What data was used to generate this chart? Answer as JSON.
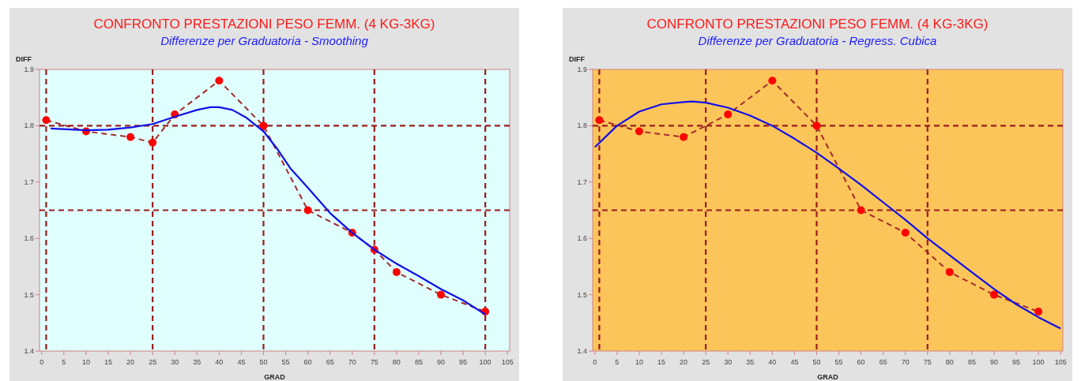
{
  "chart_data": [
    {
      "type": "line",
      "title": "CONFRONTO PRESTAZIONI PESO FEMM. (4 KG-3KG)",
      "subtitle": "Differenze per Graduatoria - Smoothing",
      "xlabel": "GRAD",
      "ylabel": "DIFF",
      "xlim": [
        -0.5,
        105.5
      ],
      "xticks": [
        0,
        5,
        10,
        15,
        20,
        25,
        30,
        35,
        40,
        45,
        50,
        55,
        60,
        65,
        70,
        75,
        80,
        85,
        90,
        95,
        100,
        105
      ],
      "ylim": [
        1.4,
        1.9
      ],
      "yticks": [
        1.4,
        1.5,
        1.6,
        1.7,
        1.8,
        1.9
      ],
      "grid": false,
      "ref_lines": [
        {
          "axis": "x",
          "value": 1,
          "color": "#9b1c1c",
          "line_style": "dashed"
        },
        {
          "axis": "x",
          "value": 25,
          "color": "#9b1c1c",
          "line_style": "dashed"
        },
        {
          "axis": "x",
          "value": 50,
          "color": "#9b1c1c",
          "line_style": "dashed"
        },
        {
          "axis": "x",
          "value": 75,
          "color": "#9b1c1c",
          "line_style": "dashed"
        },
        {
          "axis": "x",
          "value": 100,
          "color": "#9b1c1c",
          "line_style": "dashed"
        },
        {
          "axis": "y",
          "value": 1.8,
          "color": "#9b1c1c",
          "line_style": "dashed"
        },
        {
          "axis": "y",
          "value": 1.65,
          "color": "#9b1c1c",
          "line_style": "dashed"
        }
      ],
      "series": [
        {
          "type": "line",
          "color": "#a52a2a",
          "line_style": "dashed",
          "marker": "none",
          "x": [
            1,
            10,
            20,
            25,
            30,
            40,
            50,
            60,
            70,
            75,
            80,
            90,
            100
          ],
          "values": [
            1.81,
            1.79,
            1.78,
            1.77,
            1.82,
            1.88,
            1.8,
            1.65,
            1.61,
            1.58,
            1.54,
            1.5,
            1.47
          ]
        },
        {
          "type": "scatter",
          "color": "#ff0000",
          "marker": "circle",
          "x": [
            1,
            10,
            20,
            25,
            30,
            40,
            50,
            60,
            70,
            75,
            80,
            90,
            100
          ],
          "values": [
            1.81,
            1.79,
            1.78,
            1.77,
            1.82,
            1.88,
            1.8,
            1.65,
            1.61,
            1.58,
            1.54,
            1.5,
            1.47
          ]
        },
        {
          "type": "line",
          "color": "#1010e8",
          "line_style": "solid",
          "marker": "none",
          "x": [
            2,
            10,
            15,
            20,
            25,
            30,
            35,
            38,
            40,
            43,
            46,
            50,
            53,
            56,
            60,
            65,
            70,
            75,
            80,
            85,
            90,
            95,
            100
          ],
          "values": [
            1.795,
            1.792,
            1.793,
            1.797,
            1.803,
            1.816,
            1.828,
            1.833,
            1.833,
            1.828,
            1.815,
            1.79,
            1.76,
            1.725,
            1.69,
            1.645,
            1.61,
            1.58,
            1.555,
            1.533,
            1.51,
            1.49,
            1.465
          ]
        }
      ]
    },
    {
      "type": "line",
      "title": "CONFRONTO PRESTAZIONI PESO FEMM. (4 KG-3KG)",
      "subtitle": "Differenze per Graduatoria - Regress. Cubica",
      "xlabel": "GRAD",
      "ylabel": "DIFF",
      "xlim": [
        -0.5,
        105.5
      ],
      "xticks": [
        0,
        5,
        10,
        15,
        20,
        25,
        30,
        35,
        40,
        45,
        50,
        55,
        60,
        65,
        70,
        75,
        80,
        85,
        90,
        95,
        100,
        105
      ],
      "ylim": [
        1.4,
        1.9
      ],
      "yticks": [
        1.4,
        1.5,
        1.6,
        1.7,
        1.8,
        1.9
      ],
      "grid": false,
      "ref_lines": [
        {
          "axis": "x",
          "value": 1,
          "color": "#9b1c1c",
          "line_style": "dashed"
        },
        {
          "axis": "x",
          "value": 25,
          "color": "#9b1c1c",
          "line_style": "dashed"
        },
        {
          "axis": "x",
          "value": 50,
          "color": "#9b1c1c",
          "line_style": "dashed"
        },
        {
          "axis": "x",
          "value": 75,
          "color": "#9b1c1c",
          "line_style": "dashed"
        },
        {
          "axis": "y",
          "value": 1.8,
          "color": "#9b1c1c",
          "line_style": "dashed"
        },
        {
          "axis": "y",
          "value": 1.65,
          "color": "#9b1c1c",
          "line_style": "dashed"
        }
      ],
      "series": [
        {
          "type": "line",
          "color": "#a52a2a",
          "line_style": "dashed",
          "marker": "none",
          "x": [
            1,
            10,
            20,
            30,
            40,
            50,
            60,
            70,
            80,
            90,
            100
          ],
          "values": [
            1.81,
            1.79,
            1.78,
            1.82,
            1.88,
            1.8,
            1.65,
            1.61,
            1.54,
            1.5,
            1.47
          ]
        },
        {
          "type": "scatter",
          "color": "#ff0000",
          "marker": "circle",
          "x": [
            1,
            10,
            20,
            30,
            40,
            50,
            60,
            70,
            80,
            90,
            100
          ],
          "values": [
            1.81,
            1.79,
            1.78,
            1.82,
            1.88,
            1.8,
            1.65,
            1.61,
            1.54,
            1.5,
            1.47
          ]
        },
        {
          "type": "line",
          "color": "#1010e8",
          "line_style": "solid",
          "marker": "none",
          "x": [
            0,
            5,
            10,
            15,
            20,
            22,
            25,
            30,
            35,
            40,
            45,
            50,
            55,
            60,
            65,
            70,
            75,
            80,
            85,
            90,
            95,
            100,
            105
          ],
          "values": [
            1.762,
            1.8,
            1.825,
            1.838,
            1.842,
            1.843,
            1.841,
            1.832,
            1.818,
            1.8,
            1.777,
            1.752,
            1.724,
            1.695,
            1.664,
            1.633,
            1.6,
            1.57,
            1.54,
            1.51,
            1.483,
            1.46,
            1.44
          ]
        }
      ]
    }
  ]
}
